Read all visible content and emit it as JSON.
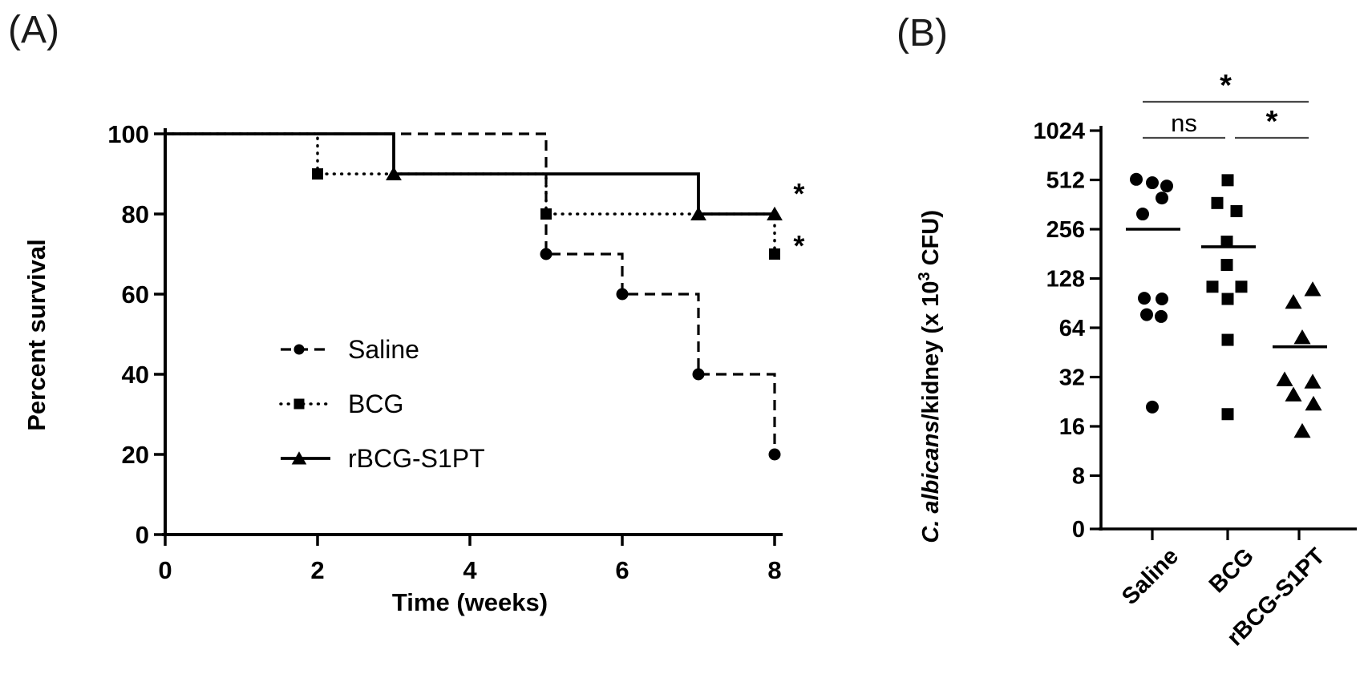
{
  "figure": {
    "panel_a_tag": "(A)",
    "panel_b_tag": "(B)"
  },
  "colors": {
    "ink": "#000000",
    "significance_bar": "#474747"
  },
  "chart_data": [
    {
      "id": "survival",
      "type": "line",
      "subtype": "kaplan-meier-step",
      "xlabel": "Time (weeks)",
      "ylabel": "Percent survival",
      "xlim": [
        0,
        8
      ],
      "ylim": [
        0,
        100
      ],
      "xticks": [
        0,
        2,
        4,
        6,
        8
      ],
      "yticks": [
        100,
        80,
        60,
        40,
        20,
        0
      ],
      "grid": false,
      "legend_position": "inside-lower-left",
      "series": [
        {
          "name": "Saline",
          "line": "dashed",
          "marker": "circle",
          "steps": [
            [
              0,
              100
            ],
            [
              5,
              100
            ],
            [
              5,
              70
            ],
            [
              6,
              70
            ],
            [
              6,
              60
            ],
            [
              7,
              60
            ],
            [
              7,
              40
            ],
            [
              8,
              40
            ],
            [
              8,
              20
            ]
          ],
          "markers": [
            [
              5,
              70
            ],
            [
              6,
              60
            ],
            [
              7,
              40
            ],
            [
              8,
              20
            ]
          ]
        },
        {
          "name": "BCG",
          "line": "dotted",
          "marker": "square",
          "steps": [
            [
              0,
              100
            ],
            [
              2,
              100
            ],
            [
              2,
              90
            ],
            [
              5,
              90
            ],
            [
              5,
              80
            ],
            [
              8,
              80
            ],
            [
              8,
              70
            ]
          ],
          "markers": [
            [
              2,
              90
            ],
            [
              5,
              80
            ],
            [
              8,
              70
            ]
          ]
        },
        {
          "name": "rBCG-S1PT",
          "line": "solid",
          "marker": "triangle",
          "steps": [
            [
              0,
              100
            ],
            [
              3,
              100
            ],
            [
              3,
              90
            ],
            [
              7,
              90
            ],
            [
              7,
              80
            ],
            [
              8,
              80
            ]
          ],
          "markers": [
            [
              3,
              90
            ],
            [
              7,
              80
            ],
            [
              8,
              80
            ]
          ]
        }
      ],
      "annotations": [
        {
          "text": "*",
          "x": 8.32,
          "y": 85
        },
        {
          "text": "*",
          "x": 8.32,
          "y": 72
        }
      ]
    },
    {
      "id": "kidney-cfu",
      "type": "scatter",
      "subtype": "column-dot-plot",
      "yscale": "log2",
      "ylabel_parts": {
        "italic": "C. albicans",
        "mid": "/kidney (x 10",
        "sup": "3",
        "end": " CFU)"
      },
      "yticks": [
        1024,
        512,
        256,
        128,
        64,
        32,
        16,
        8,
        0
      ],
      "grid": false,
      "groups": [
        {
          "name": "Saline",
          "marker": "circle",
          "mean": 256,
          "points": [
            {
              "v": 516,
              "dx": -20
            },
            {
              "v": 492,
              "dx": 0
            },
            {
              "v": 470,
              "dx": 18
            },
            {
              "v": 397,
              "dx": 12
            },
            {
              "v": 317,
              "dx": -12
            },
            {
              "v": 97,
              "dx": -10
            },
            {
              "v": 96,
              "dx": 12
            },
            {
              "v": 77,
              "dx": -7
            },
            {
              "v": 75,
              "dx": 11
            },
            {
              "v": 21,
              "dx": 0
            }
          ]
        },
        {
          "name": "BCG",
          "marker": "square",
          "mean": 200,
          "points": [
            {
              "v": 510,
              "dx": 0
            },
            {
              "v": 370,
              "dx": -13
            },
            {
              "v": 330,
              "dx": 11
            },
            {
              "v": 215,
              "dx": -1
            },
            {
              "v": 155,
              "dx": -1
            },
            {
              "v": 114,
              "dx": -19
            },
            {
              "v": 114,
              "dx": 17
            },
            {
              "v": 96,
              "dx": 0
            },
            {
              "v": 54,
              "dx": 0
            },
            {
              "v": 19,
              "dx": 0
            }
          ]
        },
        {
          "name": "rBCG-S1PT",
          "marker": "triangle",
          "mean": 49,
          "points": [
            {
              "v": 110,
              "dx": 17
            },
            {
              "v": 92,
              "dx": -7
            },
            {
              "v": 56,
              "dx": 4
            },
            {
              "v": 31,
              "dx": -18
            },
            {
              "v": 30,
              "dx": 17
            },
            {
              "v": 25,
              "dx": -7
            },
            {
              "v": 22,
              "dx": 18
            },
            {
              "v": 15,
              "dx": 4
            }
          ]
        }
      ],
      "significance": [
        {
          "from": "Saline",
          "to": "rBCG-S1PT",
          "label": "*",
          "level": "top"
        },
        {
          "from": "Saline",
          "to": "BCG",
          "label": "ns",
          "level": "low"
        },
        {
          "from": "BCG",
          "to": "rBCG-S1PT",
          "label": "*",
          "level": "low"
        }
      ]
    }
  ]
}
